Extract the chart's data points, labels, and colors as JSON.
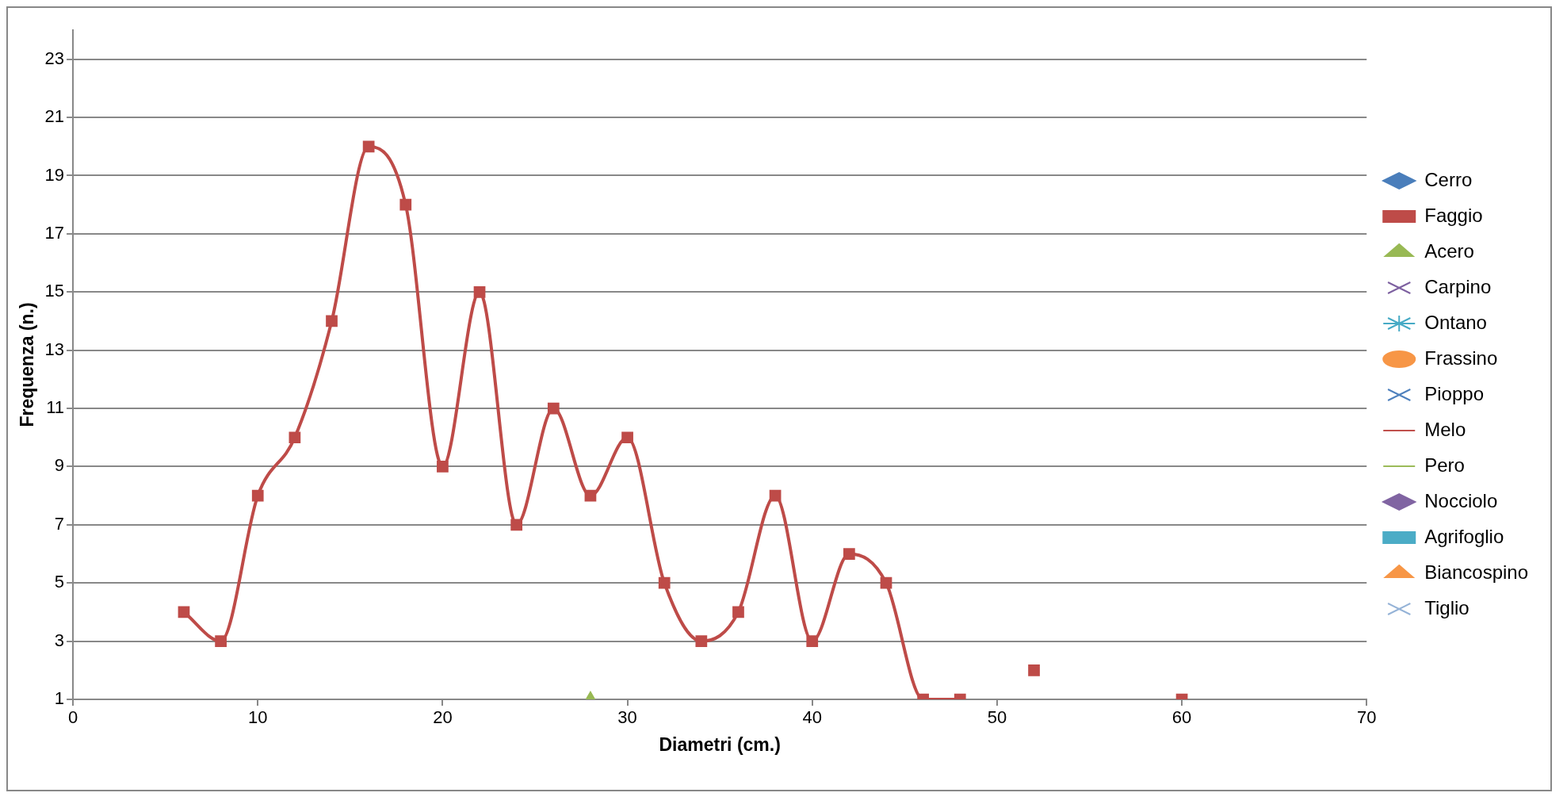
{
  "chart_data": {
    "type": "line",
    "xlabel": "Diametri (cm.)",
    "ylabel": "Frequenza (n.)",
    "xlim": [
      0,
      70
    ],
    "xticks": [
      0,
      10,
      20,
      30,
      40,
      50,
      60,
      70
    ],
    "ylim": [
      1,
      24
    ],
    "yticks": [
      1,
      3,
      5,
      7,
      9,
      11,
      13,
      15,
      17,
      19,
      21,
      23
    ],
    "grid": "y",
    "legend": "right",
    "series": [
      {
        "name": "Cerro",
        "color": "#4a7ebb",
        "marker": "diamond"
      },
      {
        "name": "Faggio",
        "color": "#be4b48",
        "marker": "square",
        "x": [
          6,
          8,
          10,
          12,
          14,
          16,
          18,
          20,
          22,
          24,
          26,
          28,
          30,
          32,
          34,
          36,
          38,
          40,
          42,
          44,
          46,
          48,
          50,
          52,
          54,
          60
        ],
        "values": [
          4,
          3,
          8,
          10,
          14,
          20,
          18,
          9,
          15,
          7,
          11,
          8,
          10,
          5,
          3,
          4,
          8,
          3,
          6,
          5,
          1,
          1,
          null,
          2,
          null,
          1
        ]
      },
      {
        "name": "Acero",
        "color": "#98b954",
        "marker": "triangle",
        "x": [
          28
        ],
        "values": [
          1
        ]
      },
      {
        "name": "Carpino",
        "color": "#7d60a0",
        "marker": "cross"
      },
      {
        "name": "Ontano",
        "color": "#46aac5",
        "marker": "star"
      },
      {
        "name": "Frassino",
        "color": "#f79646",
        "marker": "circle"
      },
      {
        "name": "Pioppo",
        "color": "#4f81bd",
        "marker": "cross"
      },
      {
        "name": "Melo",
        "color": "#c0504d",
        "marker": "none"
      },
      {
        "name": "Pero",
        "color": "#9bbb59",
        "marker": "none"
      },
      {
        "name": "Nocciolo",
        "color": "#8064a2",
        "marker": "diamond"
      },
      {
        "name": "Agrifoglio",
        "color": "#4bacc6",
        "marker": "square"
      },
      {
        "name": "Biancospino",
        "color": "#f79646",
        "marker": "triangle"
      },
      {
        "name": "Tiglio",
        "color": "#95b3d7",
        "marker": "cross"
      }
    ]
  }
}
